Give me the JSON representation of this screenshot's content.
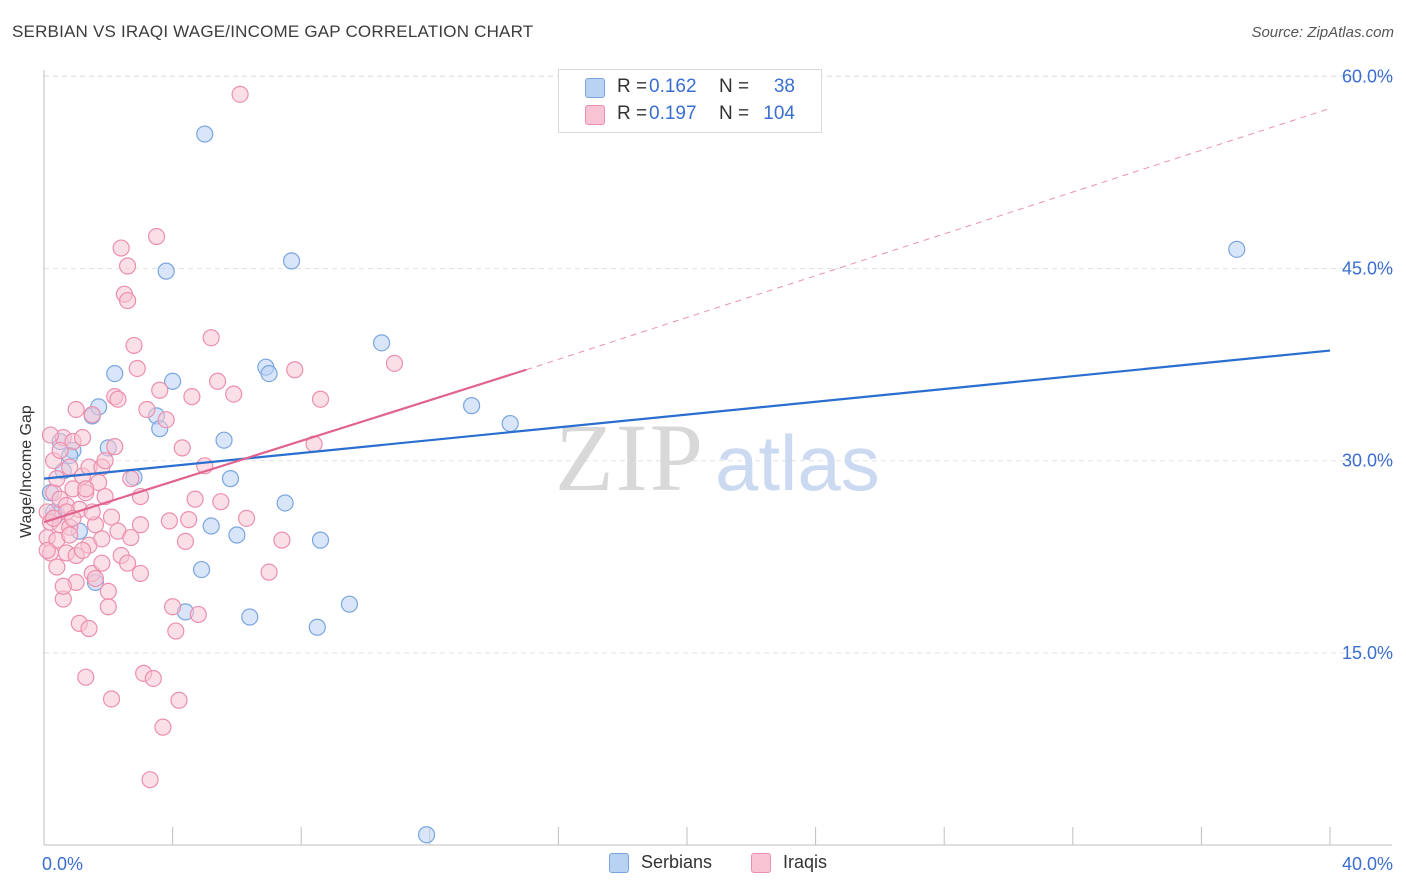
{
  "title": "SERBIAN VS IRAQI WAGE/INCOME GAP CORRELATION CHART",
  "source": "Source: ZipAtlas.com",
  "watermark": {
    "zip": "ZIP",
    "atlas": "atlas"
  },
  "colors": {
    "serbians_fill": "#b9d2f4",
    "serbians_stroke": "#7aa6df",
    "serbians_line": "#2a6fd0",
    "iraqis_fill": "#f8c4d4",
    "iraqis_stroke": "#ec8fae",
    "iraqis_line": "#e0648e",
    "tick_label": "#3a6fd0",
    "grid": "#e3e3e3"
  },
  "legend": {
    "rows": [
      {
        "r_label": "R =",
        "r_value": "0.162",
        "n_label": "N =",
        "n_value": "38"
      },
      {
        "r_label": "R =",
        "r_value": "0.197",
        "n_label": "N =",
        "n_value": "104"
      }
    ]
  },
  "bottom_legend": {
    "serbians": "Serbians",
    "iraqis": "Iraqis"
  },
  "chart_data": {
    "type": "scatter",
    "title": "SERBIAN VS IRAQI WAGE/INCOME GAP CORRELATION CHART",
    "xlabel": "",
    "ylabel": "Wage/Income Gap",
    "xlim": [
      0,
      40
    ],
    "ylim": [
      0,
      60.5
    ],
    "x_tick_labels": [
      "0.0%",
      "40.0%"
    ],
    "y_ticks": [
      15,
      30,
      45,
      60
    ],
    "y_tick_labels": [
      "15.0%",
      "30.0%",
      "45.0%",
      "60.0%"
    ],
    "grid": true,
    "series": [
      {
        "name": "Serbians",
        "r": 0.162,
        "n": 38,
        "trend": {
          "x": [
            0,
            40
          ],
          "y": [
            28.6,
            38.6
          ],
          "dashed_extension": false
        },
        "points": [
          [
            0.2,
            27.5
          ],
          [
            0.4,
            25.8
          ],
          [
            0.5,
            31.5
          ],
          [
            0.6,
            29.2
          ],
          [
            0.9,
            30.8
          ],
          [
            1.5,
            33.5
          ],
          [
            1.7,
            34.2
          ],
          [
            2.0,
            31.0
          ],
          [
            2.2,
            36.8
          ],
          [
            2.8,
            28.7
          ],
          [
            3.5,
            33.5
          ],
          [
            3.6,
            32.5
          ],
          [
            3.8,
            44.8
          ],
          [
            4.0,
            36.2
          ],
          [
            4.4,
            18.2
          ],
          [
            4.9,
            21.5
          ],
          [
            5.0,
            55.5
          ],
          [
            5.2,
            24.9
          ],
          [
            5.6,
            31.6
          ],
          [
            5.8,
            28.6
          ],
          [
            6.0,
            24.2
          ],
          [
            6.4,
            17.8
          ],
          [
            6.9,
            37.3
          ],
          [
            7.0,
            36.8
          ],
          [
            7.5,
            26.7
          ],
          [
            7.7,
            45.6
          ],
          [
            8.5,
            17.0
          ],
          [
            8.6,
            23.8
          ],
          [
            9.5,
            18.8
          ],
          [
            10.5,
            39.2
          ],
          [
            11.9,
            0.8
          ],
          [
            13.3,
            34.3
          ],
          [
            14.5,
            32.9
          ],
          [
            37.1,
            46.5
          ],
          [
            0.3,
            26.0
          ],
          [
            1.6,
            20.5
          ],
          [
            1.1,
            24.5
          ],
          [
            0.8,
            30.4
          ]
        ]
      },
      {
        "name": "Iraqis",
        "r": 0.197,
        "n": 104,
        "trend": {
          "x": [
            0,
            15
          ],
          "y": [
            25.2,
            37.1
          ],
          "dashed_extension_to": [
            40,
            57.5
          ]
        },
        "points": [
          [
            0.1,
            24.0
          ],
          [
            0.1,
            26.0
          ],
          [
            0.2,
            22.8
          ],
          [
            0.2,
            25.2
          ],
          [
            0.3,
            30.0
          ],
          [
            0.3,
            27.5
          ],
          [
            0.4,
            28.6
          ],
          [
            0.4,
            23.8
          ],
          [
            0.5,
            27.0
          ],
          [
            0.5,
            25.0
          ],
          [
            0.6,
            31.8
          ],
          [
            0.6,
            19.2
          ],
          [
            0.7,
            26.5
          ],
          [
            0.7,
            22.8
          ],
          [
            0.8,
            29.5
          ],
          [
            0.8,
            24.8
          ],
          [
            0.9,
            27.8
          ],
          [
            0.9,
            31.5
          ],
          [
            1.0,
            20.5
          ],
          [
            1.0,
            22.6
          ],
          [
            1.1,
            17.3
          ],
          [
            1.1,
            26.2
          ],
          [
            1.2,
            28.8
          ],
          [
            1.3,
            13.1
          ],
          [
            1.3,
            27.5
          ],
          [
            1.4,
            29.5
          ],
          [
            1.4,
            23.4
          ],
          [
            1.5,
            33.6
          ],
          [
            1.5,
            21.2
          ],
          [
            1.6,
            25.0
          ],
          [
            1.7,
            28.3
          ],
          [
            1.8,
            29.5
          ],
          [
            1.8,
            22.0
          ],
          [
            1.9,
            27.2
          ],
          [
            2.0,
            18.6
          ],
          [
            2.1,
            25.6
          ],
          [
            2.1,
            11.4
          ],
          [
            2.2,
            31.1
          ],
          [
            2.3,
            24.5
          ],
          [
            2.4,
            46.6
          ],
          [
            2.5,
            43.0
          ],
          [
            2.6,
            45.2
          ],
          [
            2.6,
            42.5
          ],
          [
            2.7,
            24.0
          ],
          [
            2.8,
            39.0
          ],
          [
            2.9,
            37.2
          ],
          [
            3.0,
            21.2
          ],
          [
            3.0,
            27.2
          ],
          [
            3.1,
            13.4
          ],
          [
            3.2,
            34.0
          ],
          [
            3.3,
            5.1
          ],
          [
            3.4,
            13.0
          ],
          [
            3.5,
            47.5
          ],
          [
            3.6,
            35.5
          ],
          [
            3.7,
            9.2
          ],
          [
            3.8,
            33.2
          ],
          [
            3.9,
            25.3
          ],
          [
            4.0,
            18.6
          ],
          [
            4.1,
            16.7
          ],
          [
            4.2,
            11.3
          ],
          [
            4.3,
            31.0
          ],
          [
            4.4,
            23.7
          ],
          [
            4.5,
            25.4
          ],
          [
            4.6,
            35.0
          ],
          [
            4.7,
            27.0
          ],
          [
            4.8,
            18.0
          ],
          [
            5.0,
            29.6
          ],
          [
            5.2,
            39.6
          ],
          [
            5.4,
            36.2
          ],
          [
            5.5,
            26.8
          ],
          [
            5.9,
            35.2
          ],
          [
            6.1,
            58.6
          ],
          [
            6.3,
            25.5
          ],
          [
            7.0,
            21.3
          ],
          [
            7.4,
            23.8
          ],
          [
            7.8,
            37.1
          ],
          [
            8.4,
            31.3
          ],
          [
            8.6,
            34.8
          ],
          [
            10.9,
            37.6
          ],
          [
            0.2,
            32.0
          ],
          [
            0.5,
            30.8
          ],
          [
            0.7,
            26.0
          ],
          [
            0.9,
            25.5
          ],
          [
            1.0,
            34.0
          ],
          [
            1.2,
            23.0
          ],
          [
            1.4,
            16.9
          ],
          [
            1.6,
            20.8
          ],
          [
            1.8,
            23.9
          ],
          [
            2.0,
            19.8
          ],
          [
            2.2,
            35.0
          ],
          [
            2.4,
            22.6
          ],
          [
            2.6,
            22.0
          ],
          [
            0.1,
            23.0
          ],
          [
            0.3,
            25.5
          ],
          [
            0.4,
            21.7
          ],
          [
            0.6,
            20.2
          ],
          [
            0.8,
            24.2
          ],
          [
            1.2,
            31.8
          ],
          [
            1.5,
            26.0
          ],
          [
            1.9,
            30.0
          ],
          [
            2.3,
            34.8
          ],
          [
            3.0,
            25.0
          ],
          [
            2.7,
            28.6
          ],
          [
            1.3,
            27.8
          ]
        ]
      }
    ]
  }
}
